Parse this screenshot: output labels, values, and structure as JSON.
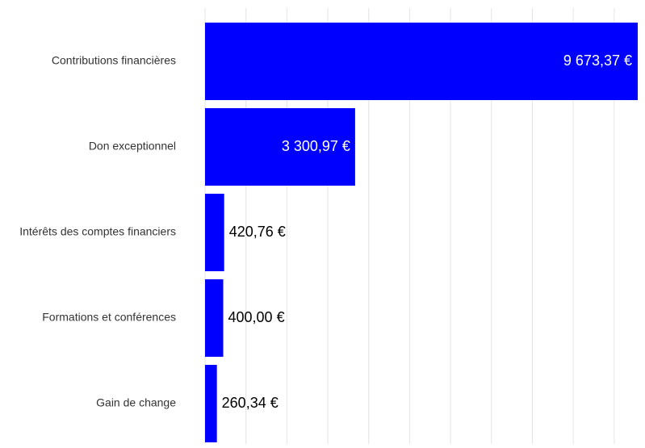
{
  "chart_data": {
    "type": "bar",
    "orientation": "horizontal",
    "categories": [
      "Contributions financières",
      "Don exceptionnel",
      "Intérêts des comptes financiers",
      "Formations et conférences",
      "Gain de change"
    ],
    "values": [
      9673.37,
      3300.97,
      420.76,
      400.0,
      260.34
    ],
    "value_labels": [
      "9 673,37 €",
      "3 300,97 €",
      "420,76 €",
      "400,00 €",
      "260,34 €"
    ],
    "color": "#0000ff",
    "xlim": [
      0,
      9500
    ],
    "xticks": [
      0,
      900,
      1800,
      2700,
      3600,
      4500,
      5400,
      6300,
      7200,
      8100,
      9000
    ],
    "grid": true
  }
}
